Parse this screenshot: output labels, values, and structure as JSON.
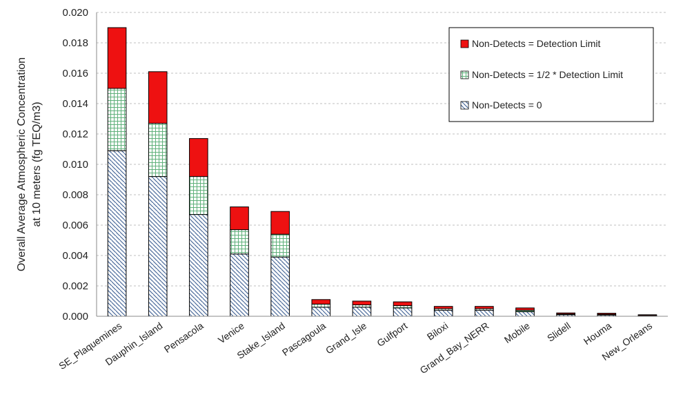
{
  "chart_data": {
    "type": "bar",
    "stacked": true,
    "title": "",
    "xlabel": "",
    "ylabel": [
      "Overall Average Atmospheric Concentration",
      "at 10 meters (fg TEQ/m3)"
    ],
    "ylim": [
      0,
      0.02
    ],
    "yticks": [
      "0.000",
      "0.002",
      "0.004",
      "0.006",
      "0.008",
      "0.010",
      "0.012",
      "0.014",
      "0.016",
      "0.018",
      "0.020"
    ],
    "grid": true,
    "legend_position": "top-right",
    "categories": [
      "SE_Plaquemines",
      "Dauphin_Island",
      "Pensacola",
      "Venice",
      "Stake_Island",
      "Pascagoula",
      "Grand_Isle",
      "Gulfport",
      "Biloxi",
      "Grand_Bay_NERR",
      "Mobile",
      "Slidell",
      "Houma",
      "New_Orleans"
    ],
    "series": [
      {
        "name": "Non-Detects = 0",
        "pattern": "diagonal-hatch",
        "color": "#4a6a9a",
        "values": [
          0.0109,
          0.0092,
          0.0067,
          0.0041,
          0.0039,
          0.0006,
          0.0006,
          0.00055,
          0.0004,
          0.0004,
          0.0003,
          0.0001,
          8e-05,
          3e-05
        ]
      },
      {
        "name": "Non-Detects = 1/2 * Detection Limit",
        "pattern": "green-grid",
        "color": "#5fb07a",
        "values": [
          0.0041,
          0.0035,
          0.0025,
          0.0016,
          0.0015,
          0.0002,
          0.00015,
          0.00015,
          0.0001,
          0.0001,
          0.0001,
          5e-05,
          5e-05,
          2e-05
        ]
      },
      {
        "name": "Non-Detects = Detection Limit",
        "pattern": "solid",
        "color": "#ee1111",
        "values": [
          0.004,
          0.0034,
          0.0025,
          0.0015,
          0.0015,
          0.0003,
          0.00025,
          0.00025,
          0.00015,
          0.00015,
          0.00015,
          7e-05,
          7e-05,
          5e-05
        ]
      }
    ]
  }
}
